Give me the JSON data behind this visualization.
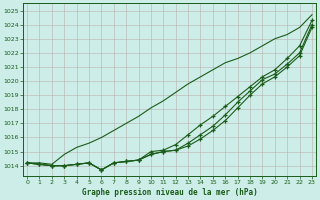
{
  "xlabel": "Graphe pression niveau de la mer (hPa)",
  "xlim": [
    -0.3,
    23.3
  ],
  "ylim": [
    1013.3,
    1025.5
  ],
  "yticks": [
    1014,
    1015,
    1016,
    1017,
    1018,
    1019,
    1020,
    1021,
    1022,
    1023,
    1024,
    1025
  ],
  "xticks": [
    0,
    1,
    2,
    3,
    4,
    5,
    6,
    7,
    8,
    9,
    10,
    11,
    12,
    13,
    14,
    15,
    16,
    17,
    18,
    19,
    20,
    21,
    22,
    23
  ],
  "background_color": "#cdeee8",
  "grid_color": "#b8b0b0",
  "line_color": "#1a5c1a",
  "series_steep": [
    1014.2,
    1014.2,
    1014.1,
    1014.8,
    1015.3,
    1015.6,
    1016.0,
    1016.5,
    1017.0,
    1017.5,
    1018.1,
    1018.6,
    1019.2,
    1019.8,
    1020.3,
    1020.8,
    1021.3,
    1021.6,
    1022.0,
    1022.5,
    1023.0,
    1023.3,
    1023.8,
    1024.7
  ],
  "series_mid1": [
    1014.2,
    1014.1,
    1014.0,
    1014.0,
    1014.1,
    1014.2,
    1013.7,
    1014.2,
    1014.3,
    1014.4,
    1015.0,
    1015.1,
    1015.5,
    1016.2,
    1016.9,
    1017.5,
    1018.2,
    1018.9,
    1019.6,
    1020.3,
    1020.8,
    1021.6,
    1022.5,
    1024.3
  ],
  "series_mid2": [
    1014.2,
    1014.1,
    1014.0,
    1014.0,
    1014.1,
    1014.2,
    1013.7,
    1014.2,
    1014.3,
    1014.4,
    1014.8,
    1015.0,
    1015.1,
    1015.6,
    1016.2,
    1016.8,
    1017.6,
    1018.5,
    1019.3,
    1020.1,
    1020.5,
    1021.2,
    1022.0,
    1024.0
  ],
  "series_low": [
    1014.2,
    1014.1,
    1014.0,
    1014.0,
    1014.1,
    1014.2,
    1013.7,
    1014.2,
    1014.3,
    1014.4,
    1014.8,
    1015.0,
    1015.1,
    1015.4,
    1015.9,
    1016.5,
    1017.2,
    1018.1,
    1019.0,
    1019.8,
    1020.3,
    1021.0,
    1021.8,
    1023.8
  ]
}
